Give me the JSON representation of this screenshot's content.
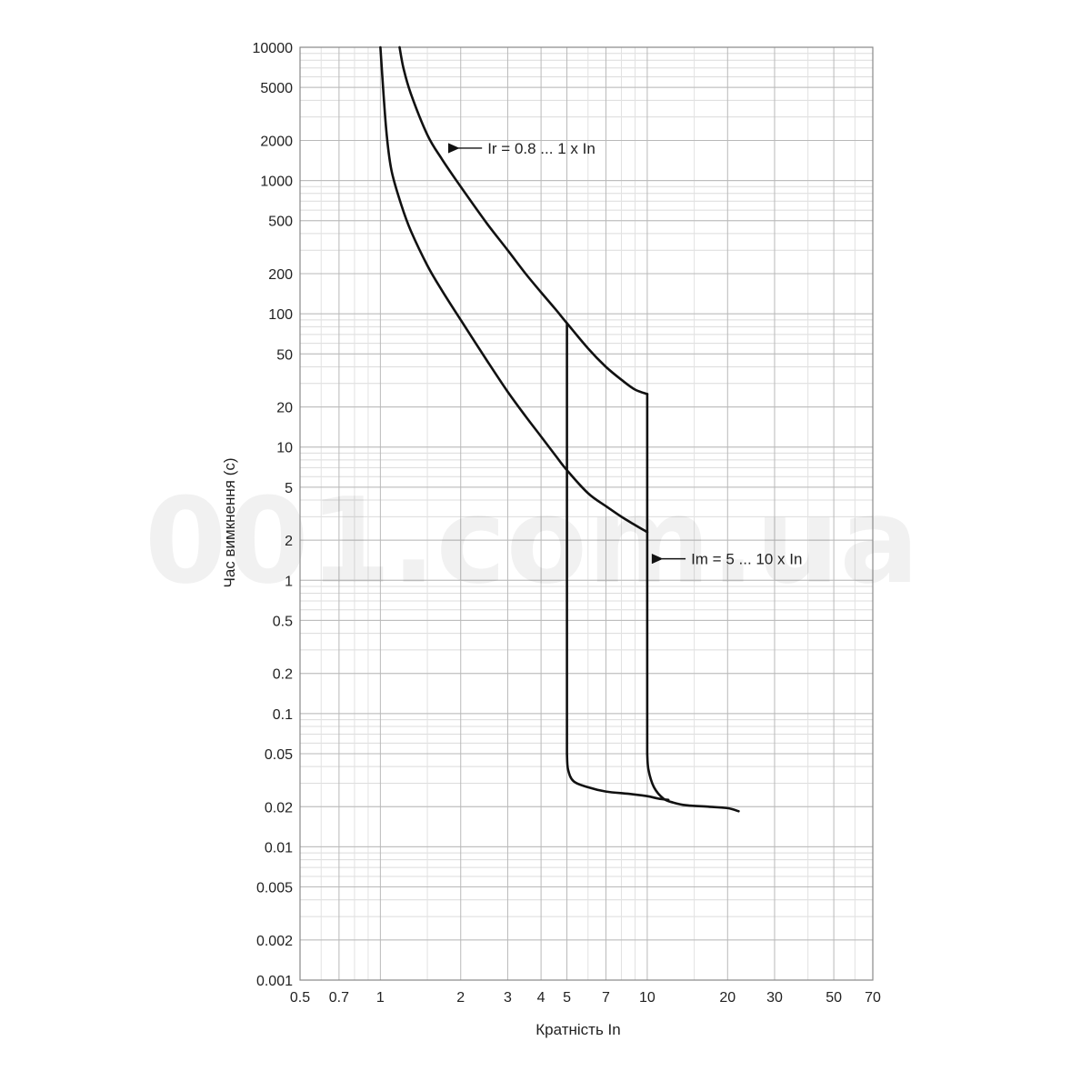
{
  "chart_data": {
    "type": "line",
    "xlabel": "Кратність In",
    "ylabel": "Час вимкнення (с)",
    "x_scale": "log",
    "y_scale": "log",
    "xlim": [
      0.5,
      70
    ],
    "ylim": [
      0.001,
      10000
    ],
    "grid": true,
    "x_ticks": [
      {
        "value": 0.5,
        "label": "0.5"
      },
      {
        "value": 0.7,
        "label": "0.7"
      },
      {
        "value": 1,
        "label": "1"
      },
      {
        "value": 2,
        "label": "2"
      },
      {
        "value": 3,
        "label": "3"
      },
      {
        "value": 4,
        "label": "4"
      },
      {
        "value": 5,
        "label": "5"
      },
      {
        "value": 7,
        "label": "7"
      },
      {
        "value": 10,
        "label": "10"
      },
      {
        "value": 20,
        "label": "20"
      },
      {
        "value": 30,
        "label": "30"
      },
      {
        "value": 50,
        "label": "50"
      },
      {
        "value": 70,
        "label": "70"
      }
    ],
    "y_ticks": [
      {
        "value": 10000,
        "label": "10000"
      },
      {
        "value": 5000,
        "label": "5000"
      },
      {
        "value": 2000,
        "label": "2000"
      },
      {
        "value": 1000,
        "label": "1000"
      },
      {
        "value": 500,
        "label": "500"
      },
      {
        "value": 200,
        "label": "200"
      },
      {
        "value": 100,
        "label": "100"
      },
      {
        "value": 50,
        "label": "50"
      },
      {
        "value": 20,
        "label": "20"
      },
      {
        "value": 10,
        "label": "10"
      },
      {
        "value": 5,
        "label": "5"
      },
      {
        "value": 2,
        "label": "2"
      },
      {
        "value": 1,
        "label": "1"
      },
      {
        "value": 0.5,
        "label": "0.5"
      },
      {
        "value": 0.2,
        "label": "0.2"
      },
      {
        "value": 0.1,
        "label": "0.1"
      },
      {
        "value": 0.05,
        "label": "0.05"
      },
      {
        "value": 0.02,
        "label": "0.02"
      },
      {
        "value": 0.01,
        "label": "0.01"
      },
      {
        "value": 0.005,
        "label": "0.005"
      },
      {
        "value": 0.002,
        "label": "0.002"
      },
      {
        "value": 0.001,
        "label": "0.001"
      }
    ],
    "series": [
      {
        "key": "lower",
        "values": [
          [
            1.0,
            10000
          ],
          [
            1.05,
            2500
          ],
          [
            1.1,
            1200
          ],
          [
            1.2,
            650
          ],
          [
            1.3,
            420
          ],
          [
            1.5,
            230
          ],
          [
            1.7,
            150
          ],
          [
            2.0,
            90
          ],
          [
            2.5,
            45
          ],
          [
            3.0,
            26
          ],
          [
            3.5,
            17
          ],
          [
            4.0,
            12
          ],
          [
            4.5,
            8.8
          ],
          [
            5.0,
            6.7
          ],
          [
            6.0,
            4.5
          ],
          [
            7.0,
            3.6
          ],
          [
            8.0,
            3.0
          ],
          [
            9.0,
            2.6
          ],
          [
            10.0,
            2.3
          ]
        ]
      },
      {
        "key": "upper",
        "values": [
          [
            1.18,
            10000
          ],
          [
            1.22,
            7000
          ],
          [
            1.3,
            4500
          ],
          [
            1.5,
            2200
          ],
          [
            1.7,
            1450
          ],
          [
            2.0,
            900
          ],
          [
            2.5,
            480
          ],
          [
            3.0,
            300
          ],
          [
            3.5,
            200
          ],
          [
            4.0,
            145
          ],
          [
            4.5,
            110
          ],
          [
            5.0,
            85
          ],
          [
            6.0,
            55
          ],
          [
            7.0,
            40
          ],
          [
            8.0,
            32
          ],
          [
            9.0,
            27
          ],
          [
            10.0,
            25
          ]
        ]
      },
      {
        "key": "magnetic-min",
        "values": [
          [
            5.0,
            85
          ],
          [
            5.0,
            0.05
          ],
          [
            5.05,
            0.038
          ],
          [
            5.3,
            0.031
          ],
          [
            6.0,
            0.028
          ],
          [
            7.0,
            0.026
          ],
          [
            8.5,
            0.025
          ],
          [
            10.0,
            0.024
          ],
          [
            11.0,
            0.023
          ],
          [
            12.0,
            0.0225
          ]
        ]
      },
      {
        "key": "magnetic-max",
        "values": [
          [
            10.0,
            25
          ],
          [
            10.0,
            0.05
          ],
          [
            10.1,
            0.038
          ],
          [
            10.6,
            0.028
          ],
          [
            11.5,
            0.023
          ],
          [
            12.5,
            0.0215
          ],
          [
            14.0,
            0.0205
          ],
          [
            17.0,
            0.02
          ],
          [
            20.0,
            0.0195
          ],
          [
            22.0,
            0.0185
          ]
        ]
      }
    ],
    "annotations": [
      {
        "text": "Ir = 0.8 ... 1 x In",
        "arrow_to": [
          1.9,
          1750
        ]
      },
      {
        "text": "Im = 5 ... 10 x In",
        "arrow_to": [
          11.0,
          1.45
        ]
      }
    ],
    "watermark": "001.com.ua"
  }
}
